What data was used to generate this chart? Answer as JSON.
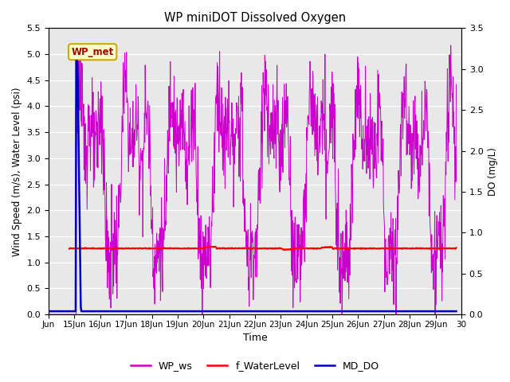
{
  "title": "WP miniDOT Dissolved Oxygen",
  "xlabel": "Time",
  "ylabel_left": "Wind Speed (m/s), Water Level (psi)",
  "ylabel_right": "DO (mg/L)",
  "ylim_left": [
    0.0,
    5.5
  ],
  "ylim_right": [
    0.0,
    3.5
  ],
  "yticks_left": [
    0.0,
    0.5,
    1.0,
    1.5,
    2.0,
    2.5,
    3.0,
    3.5,
    4.0,
    4.5,
    5.0,
    5.5
  ],
  "yticks_right": [
    0.0,
    0.5,
    1.0,
    1.5,
    2.0,
    2.5,
    3.0,
    3.5
  ],
  "xlim_days": [
    14.0,
    30.0
  ],
  "xtick_positions": [
    14,
    15,
    16,
    17,
    18,
    19,
    20,
    21,
    22,
    23,
    24,
    25,
    26,
    27,
    28,
    29,
    30
  ],
  "xtick_labels": [
    "Jun",
    "15Jun",
    "16Jun",
    "17Jun",
    "18Jun",
    "19Jun",
    "20Jun",
    "21Jun",
    "22Jun",
    "23Jun",
    "24Jun",
    "25Jun",
    "26Jun",
    "27Jun",
    "28Jun",
    "29Jun",
    "30"
  ],
  "wp_ws_color": "#CC00CC",
  "f_waterlevel_color": "#FF0000",
  "md_do_color": "#0000BB",
  "background_color": "#E8E8E8",
  "grid_color": "#FFFFFF",
  "annotation_text": "WP_met",
  "annotation_facecolor": "#FFFFCC",
  "annotation_edgecolor": "#CCAA00",
  "annotation_textcolor": "#AA0000",
  "legend_labels": [
    "WP_ws",
    "f_WaterLevel",
    "MD_DO"
  ],
  "legend_colors": [
    "#CC00CC",
    "#FF0000",
    "#0000BB"
  ]
}
